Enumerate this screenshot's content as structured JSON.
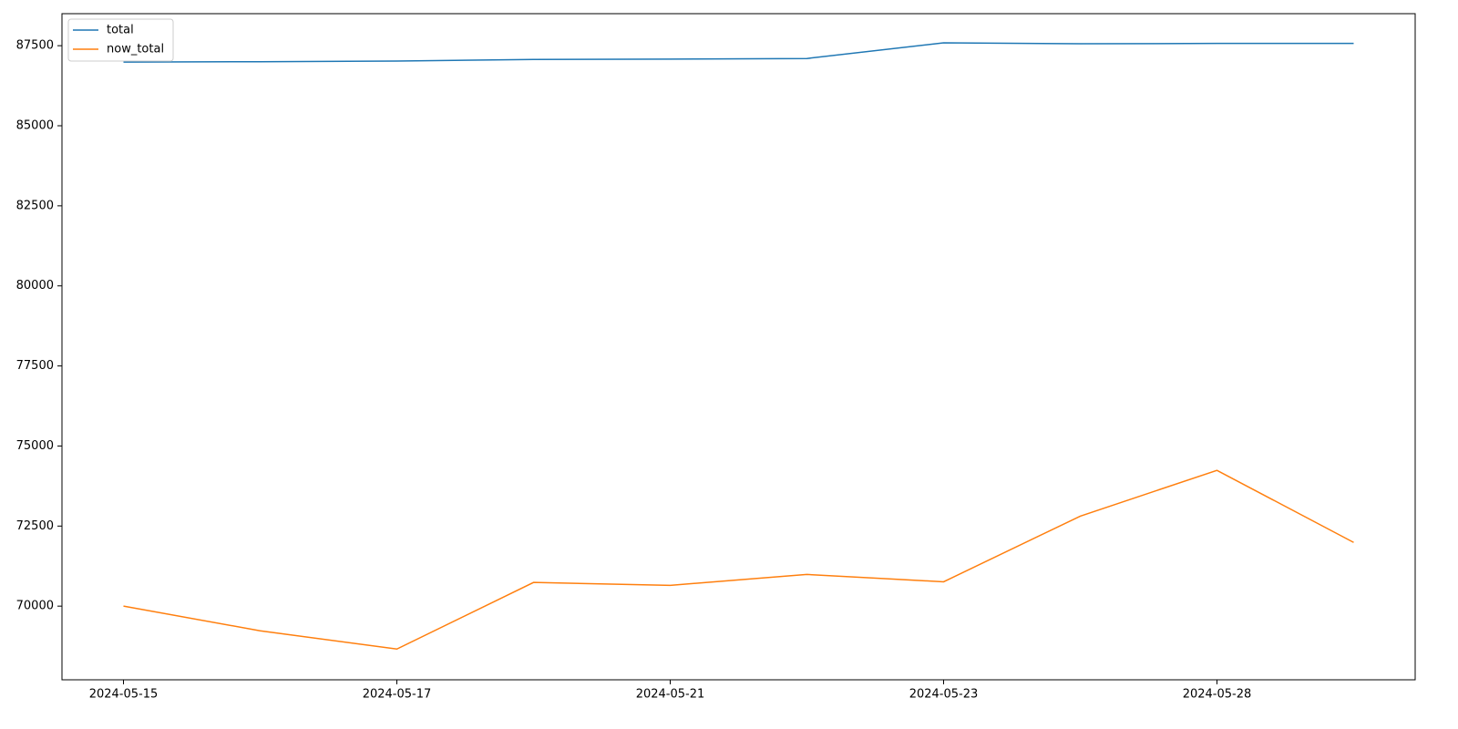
{
  "chart_data": {
    "type": "line",
    "categories": [
      "2024-05-15",
      null,
      "2024-05-17",
      null,
      "2024-05-21",
      null,
      "2024-05-23",
      null,
      "2024-05-28",
      null
    ],
    "series": [
      {
        "name": "total",
        "color": "#1f77b4",
        "values": [
          86990,
          87000,
          87020,
          87070,
          87080,
          87100,
          87590,
          87560,
          87570,
          87570
        ]
      },
      {
        "name": "now_total",
        "color": "#ff7f0e",
        "values": [
          70000,
          69230,
          68660,
          70740,
          70650,
          70990,
          70760,
          72810,
          74240,
          71990
        ]
      }
    ],
    "ylim": [
      67700,
      88500
    ],
    "yticks": [
      70000,
      72500,
      75000,
      77500,
      80000,
      82500,
      85000,
      87500
    ],
    "grid": false,
    "legend": "upper left"
  }
}
